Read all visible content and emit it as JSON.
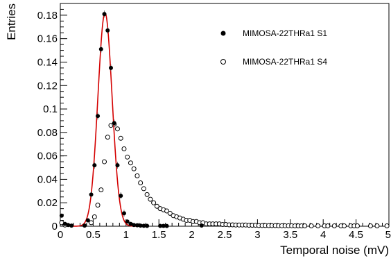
{
  "chart_data": {
    "type": "scatter",
    "title": "",
    "xlabel": "Temporal noise (mV)",
    "ylabel": "Entries",
    "xlim": [
      0,
      5
    ],
    "ylim": [
      0,
      0.19
    ],
    "x_ticks": [
      "0",
      "0.5",
      "1",
      "1.5",
      "2",
      "2.5",
      "3",
      "3.5",
      "4",
      "4.5",
      "5"
    ],
    "x_tick_values": [
      0,
      0.5,
      1,
      1.5,
      2,
      2.5,
      3,
      3.5,
      4,
      4.5,
      5
    ],
    "y_ticks": [
      "0",
      "0.02",
      "0.04",
      "0.06",
      "0.08",
      "0.1",
      "0.12",
      "0.14",
      "0.16",
      "0.18"
    ],
    "y_tick_values": [
      0,
      0.02,
      0.04,
      0.06,
      0.08,
      0.1,
      0.12,
      0.14,
      0.16,
      0.18
    ],
    "grid": false,
    "legend_position": "top-right",
    "series": [
      {
        "name": "MIMOSA-22THRa1 S1",
        "marker": "filled-circle",
        "color": "#000000",
        "points": [
          [
            0.02,
            0.009
          ],
          [
            0.07,
            0.002
          ],
          [
            0.12,
            0.001
          ],
          [
            0.17,
            0.0005
          ],
          [
            0.37,
            0.0005
          ],
          [
            0.42,
            0.005
          ],
          [
            0.47,
            0.027
          ],
          [
            0.52,
            0.052
          ],
          [
            0.57,
            0.094
          ],
          [
            0.62,
            0.151
          ],
          [
            0.67,
            0.181
          ],
          [
            0.72,
            0.167
          ],
          [
            0.77,
            0.135
          ],
          [
            0.82,
            0.088
          ],
          [
            0.87,
            0.052
          ],
          [
            0.92,
            0.026
          ],
          [
            0.97,
            0.011
          ],
          [
            1.02,
            0.004
          ],
          [
            1.07,
            0.002
          ],
          [
            1.12,
            0.001
          ],
          [
            1.17,
            0.0008
          ],
          [
            1.22,
            0.0005
          ],
          [
            1.27,
            0.0004
          ],
          [
            1.32,
            0.0003
          ],
          [
            1.52,
            0.0003
          ],
          [
            1.57,
            0.0003
          ],
          [
            1.62,
            0.0002
          ],
          [
            2.15,
            0.0006
          ]
        ]
      },
      {
        "name": "MIMOSA-22THRa1 S4",
        "marker": "open-circle",
        "color": "#000000",
        "points": [
          [
            0.02,
            0.003
          ],
          [
            0.07,
            0.001
          ],
          [
            0.47,
            0.003
          ],
          [
            0.52,
            0.008
          ],
          [
            0.57,
            0.018
          ],
          [
            0.62,
            0.031
          ],
          [
            0.67,
            0.055
          ],
          [
            0.72,
            0.076
          ],
          [
            0.77,
            0.086
          ],
          [
            0.82,
            0.087
          ],
          [
            0.87,
            0.083
          ],
          [
            0.92,
            0.075
          ],
          [
            0.97,
            0.066
          ],
          [
            1.02,
            0.059
          ],
          [
            1.07,
            0.054
          ],
          [
            1.12,
            0.049
          ],
          [
            1.17,
            0.043
          ],
          [
            1.22,
            0.037
          ],
          [
            1.27,
            0.032
          ],
          [
            1.32,
            0.027
          ],
          [
            1.37,
            0.023
          ],
          [
            1.42,
            0.02
          ],
          [
            1.47,
            0.017
          ],
          [
            1.52,
            0.015
          ],
          [
            1.57,
            0.014
          ],
          [
            1.62,
            0.013
          ],
          [
            1.67,
            0.011
          ],
          [
            1.72,
            0.009
          ],
          [
            1.77,
            0.008
          ],
          [
            1.82,
            0.007
          ],
          [
            1.87,
            0.006
          ],
          [
            1.92,
            0.005
          ],
          [
            1.97,
            0.005
          ],
          [
            2.02,
            0.004
          ],
          [
            2.07,
            0.004
          ],
          [
            2.12,
            0.003
          ],
          [
            2.17,
            0.003
          ],
          [
            2.22,
            0.002
          ],
          [
            2.27,
            0.002
          ],
          [
            2.32,
            0.002
          ],
          [
            2.37,
            0.002
          ],
          [
            2.42,
            0.002
          ],
          [
            2.47,
            0.0015
          ],
          [
            2.52,
            0.0015
          ],
          [
            2.57,
            0.0012
          ],
          [
            2.62,
            0.0012
          ],
          [
            2.67,
            0.001
          ],
          [
            2.72,
            0.001
          ],
          [
            2.77,
            0.001
          ],
          [
            2.82,
            0.001
          ],
          [
            2.87,
            0.0008
          ],
          [
            2.92,
            0.0008
          ],
          [
            2.97,
            0.0008
          ],
          [
            3.02,
            0.0006
          ],
          [
            3.07,
            0.0006
          ],
          [
            3.12,
            0.0006
          ],
          [
            3.17,
            0.0005
          ],
          [
            3.22,
            0.0005
          ],
          [
            3.27,
            0.0005
          ],
          [
            3.32,
            0.0004
          ],
          [
            3.37,
            0.0004
          ],
          [
            3.42,
            0.0004
          ],
          [
            3.47,
            0.0004
          ],
          [
            3.52,
            0.0004
          ],
          [
            3.57,
            0.0003
          ],
          [
            3.62,
            0.0003
          ],
          [
            3.67,
            0.0003
          ],
          [
            3.72,
            0.0003
          ],
          [
            3.82,
            0.0003
          ],
          [
            3.92,
            0.0003
          ],
          [
            4.02,
            0.0003
          ],
          [
            4.07,
            0.0003
          ],
          [
            4.17,
            0.0003
          ],
          [
            4.27,
            0.0003
          ],
          [
            4.32,
            0.0003
          ],
          [
            4.42,
            0.0003
          ],
          [
            4.47,
            0.0003
          ],
          [
            4.52,
            0.0003
          ],
          [
            4.72,
            0.0003
          ],
          [
            4.82,
            0.0003
          ],
          [
            4.97,
            0.0003
          ]
        ]
      }
    ],
    "fit": {
      "series": "MIMOSA-22THRa1 S1",
      "shape": "gaussian",
      "color": "#d40000",
      "amplitude": 0.182,
      "mean": 0.68,
      "sigma": 0.108
    },
    "legend": [
      {
        "label": "MIMOSA-22THRa1 S1",
        "marker": "filled-circle"
      },
      {
        "label": "MIMOSA-22THRa1 S4",
        "marker": "open-circle"
      }
    ]
  }
}
